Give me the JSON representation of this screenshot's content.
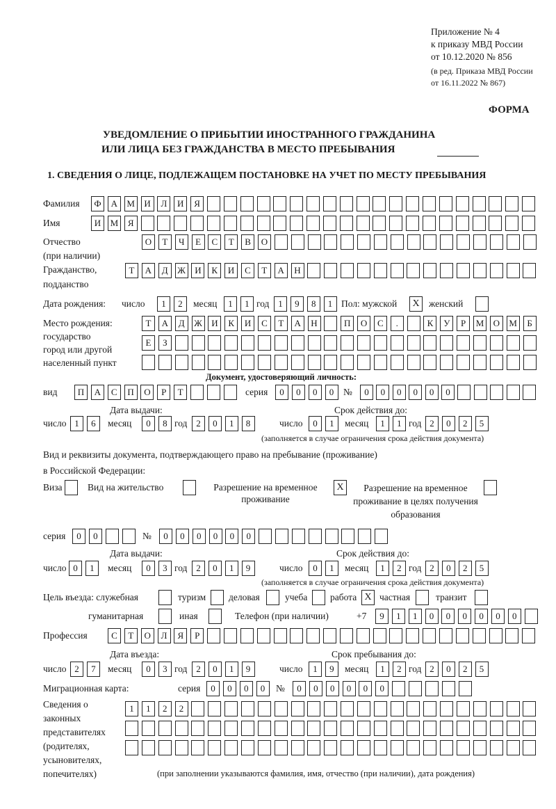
{
  "header": {
    "appendix": [
      "Приложение № 4",
      "к приказу МВД России",
      "от 10.12.2020 № 856"
    ],
    "revision": [
      "(в ред. Приказа МВД России",
      "от 16.11.2022 № 867)"
    ],
    "form_label": "ФОРМА",
    "title_line1": "УВЕДОМЛЕНИЕ О ПРИБЫТИИ ИНОСТРАННОГО ГРАЖДАНИНА",
    "title_line2": "ИЛИ ЛИЦА БЕЗ ГРАЖДАНСТВА В МЕСТО ПРЕБЫВАНИЯ",
    "section1": "1. СВЕДЕНИЯ О ЛИЦЕ, ПОДЛЕЖАЩЕМ ПОСТАНОВКЕ НА УЧЕТ ПО МЕСТУ ПРЕБЫВАНИЯ"
  },
  "labels": {
    "surname": "Фамилия",
    "name": "Имя",
    "patronymic": "Отчество",
    "patronymic_note": "(при наличии)",
    "citizenship": "Гражданство,",
    "citizenship2": "подданство",
    "birth_date": "Дата рождения:",
    "day": "число",
    "month": "месяц",
    "year": "год",
    "sex": "Пол: мужской",
    "female": "женский",
    "birthplace": [
      "Место рождения:",
      "государство",
      "город или другой",
      "населенный пункт"
    ],
    "id_doc": "Документ, удостоверяющий личность:",
    "kind": "вид",
    "series": "серия",
    "number": "№",
    "issue_date": "Дата выдачи:",
    "valid_until": "Срок действия до:",
    "validity_note": "(заполняется в случае ограничения срока действия документа)",
    "permit_doc1": "Вид и реквизиты документа, подтверждающего право на пребывание (проживание)",
    "permit_doc2": "в Российской Федерации:",
    "visa": "Виза",
    "residence_permit": "Вид на жительство",
    "temp_residence": "Разрешение на временное проживание",
    "temp_residence_edu": "Разрешение на временное проживание в целях получения образования",
    "purpose": "Цель въезда: служебная",
    "tourism": "туризм",
    "business": "деловая",
    "study": "учеба",
    "work": "работа",
    "private": "частная",
    "transit": "транзит",
    "humanitarian": "гуманитарная",
    "other": "иная",
    "phone": "Телефон (при наличии)",
    "phone_prefix": "+7",
    "profession": "Профессия",
    "entry_date": "Дата въезда:",
    "stay_until": "Срок пребывания до:",
    "migration_card": "Миграционная карта:",
    "legal_reps": [
      "Сведения о",
      "законных",
      "представителях",
      "(родителях,",
      "усыновителях,",
      "попечителях)"
    ],
    "legal_reps_note": "(при заполнении указываются фамилия, имя, отчество (при наличии), дата рождения)"
  },
  "fields": {
    "surname": [
      "Ф",
      "А",
      "М",
      "И",
      "Л",
      "И",
      "Я",
      "",
      "",
      "",
      "",
      "",
      "",
      "",
      "",
      "",
      "",
      "",
      "",
      "",
      "",
      "",
      "",
      "",
      "",
      "",
      ""
    ],
    "name": [
      "И",
      "М",
      "Я",
      "",
      "",
      "",
      "",
      "",
      "",
      "",
      "",
      "",
      "",
      "",
      "",
      "",
      "",
      "",
      "",
      "",
      "",
      "",
      "",
      "",
      "",
      "",
      ""
    ],
    "patronymic": [
      "О",
      "Т",
      "Ч",
      "Е",
      "С",
      "Т",
      "В",
      "О",
      "",
      "",
      "",
      "",
      "",
      "",
      "",
      "",
      "",
      "",
      "",
      "",
      "",
      "",
      "",
      ""
    ],
    "citizenship": [
      "Т",
      "А",
      "Д",
      "Ж",
      "И",
      "К",
      "И",
      "С",
      "Т",
      "А",
      "Н",
      "",
      "",
      "",
      "",
      "",
      "",
      "",
      "",
      "",
      "",
      "",
      "",
      "",
      ""
    ],
    "birth_day": [
      "1",
      "2"
    ],
    "birth_month": [
      "1",
      "1"
    ],
    "birth_year": [
      "1",
      "9",
      "8",
      "1"
    ],
    "sex_male": "X",
    "sex_female": "",
    "birthplace1": [
      "Т",
      "А",
      "Д",
      "Ж",
      "И",
      "К",
      "И",
      "С",
      "Т",
      "А",
      "Н",
      "",
      "П",
      "О",
      "С",
      ".",
      "",
      "К",
      "У",
      "Р",
      "М",
      "О",
      "М",
      "Б"
    ],
    "birthplace2": [
      "Е",
      "З",
      "",
      "",
      "",
      "",
      "",
      "",
      "",
      "",
      "",
      "",
      "",
      "",
      "",
      "",
      "",
      "",
      "",
      "",
      "",
      "",
      "",
      ""
    ],
    "birthplace3": [
      "",
      "",
      "",
      "",
      "",
      "",
      "",
      "",
      "",
      "",
      "",
      "",
      "",
      "",
      "",
      "",
      "",
      "",
      "",
      "",
      "",
      "",
      "",
      ""
    ],
    "id_kind": [
      "П",
      "А",
      "С",
      "П",
      "О",
      "Р",
      "Т",
      "",
      "",
      ""
    ],
    "id_series": [
      "0",
      "0",
      "0",
      "0"
    ],
    "id_number": [
      "0",
      "0",
      "0",
      "0",
      "0",
      "0",
      "",
      "",
      "",
      "",
      ""
    ],
    "id_issue_day": [
      "1",
      "6"
    ],
    "id_issue_month": [
      "0",
      "8"
    ],
    "id_issue_year": [
      "2",
      "0",
      "1",
      "8"
    ],
    "id_valid_day": [
      "0",
      "1"
    ],
    "id_valid_month": [
      "1",
      "1"
    ],
    "id_valid_year": [
      "2",
      "0",
      "2",
      "5"
    ],
    "visa": "",
    "residence_permit": "",
    "temp_residence": "X",
    "temp_residence_edu": "",
    "permit_series": [
      "0",
      "0",
      "",
      ""
    ],
    "permit_number": [
      "0",
      "0",
      "0",
      "0",
      "0",
      "0",
      "",
      "",
      "",
      "",
      "",
      "",
      "",
      ""
    ],
    "permit_issue_day": [
      "0",
      "1"
    ],
    "permit_issue_month": [
      "0",
      "3"
    ],
    "permit_issue_year": [
      "2",
      "0",
      "1",
      "9"
    ],
    "permit_valid_day": [
      "0",
      "1"
    ],
    "permit_valid_month": [
      "1",
      "2"
    ],
    "permit_valid_year": [
      "2",
      "0",
      "2",
      "5"
    ],
    "purpose_official": "",
    "purpose_tourism": "",
    "purpose_business": "",
    "purpose_study": "",
    "purpose_work": "X",
    "purpose_private": "",
    "purpose_transit": "",
    "purpose_humanitarian": "",
    "purpose_other": "",
    "phone": [
      "9",
      "1",
      "1",
      "0",
      "0",
      "0",
      "0",
      "0",
      "0",
      ""
    ],
    "profession": [
      "С",
      "Т",
      "О",
      "Л",
      "Я",
      "Р",
      "",
      "",
      "",
      "",
      "",
      "",
      "",
      "",
      "",
      "",
      "",
      "",
      "",
      "",
      "",
      "",
      "",
      "",
      "",
      ""
    ],
    "entry_day": [
      "2",
      "7"
    ],
    "entry_month": [
      "0",
      "3"
    ],
    "entry_year": [
      "2",
      "0",
      "1",
      "9"
    ],
    "stay_day": [
      "1",
      "9"
    ],
    "stay_month": [
      "1",
      "2"
    ],
    "stay_year": [
      "2",
      "0",
      "2",
      "5"
    ],
    "mc_series": [
      "0",
      "0",
      "0",
      "0"
    ],
    "mc_number": [
      "0",
      "0",
      "0",
      "0",
      "0",
      "0",
      "",
      "",
      "",
      "",
      ""
    ],
    "legal_reps1": [
      "1",
      "1",
      "2",
      "2",
      "",
      "",
      "",
      "",
      "",
      "",
      "",
      "",
      "",
      "",
      "",
      "",
      "",
      "",
      "",
      "",
      "",
      "",
      "",
      "",
      ""
    ],
    "legal_reps2": [
      "",
      "",
      "",
      "",
      "",
      "",
      "",
      "",
      "",
      "",
      "",
      "",
      "",
      "",
      "",
      "",
      "",
      "",
      "",
      "",
      "",
      "",
      "",
      "",
      ""
    ],
    "legal_reps3": [
      "",
      "",
      "",
      "",
      "",
      "",
      "",
      "",
      "",
      "",
      "",
      "",
      "",
      "",
      "",
      "",
      "",
      "",
      "",
      "",
      "",
      "",
      "",
      "",
      ""
    ]
  }
}
